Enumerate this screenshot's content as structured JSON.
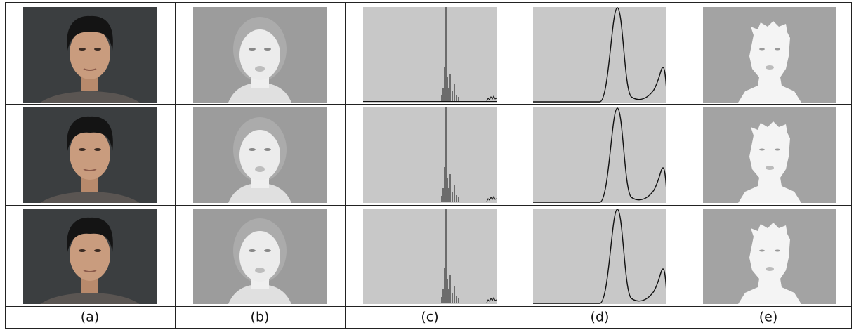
{
  "columns": [
    {
      "label": "(a)"
    },
    {
      "label": "(b)"
    },
    {
      "label": "(c)"
    },
    {
      "label": "(d)"
    },
    {
      "label": "(e)"
    }
  ]
}
